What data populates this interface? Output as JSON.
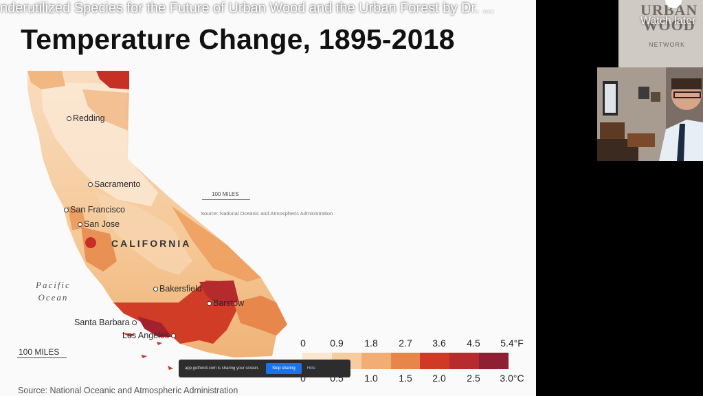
{
  "video": {
    "title": "nderutilized Species for the Future of Urban Wood and the Urban Forest by Dr. ...",
    "watch_later": "Watch later"
  },
  "logo": {
    "line1": "URBAN",
    "line2": "WOOD",
    "line3": "NETWORK"
  },
  "slide": {
    "title": "Temperature Change, 1895-2018",
    "state_label": "CALIFORNIA",
    "ocean_line1": "Pacific",
    "ocean_line2": "Ocean",
    "cities": {
      "redding": "Redding",
      "sacramento": "Sacramento",
      "san_francisco": "San Francisco",
      "san_jose": "San Jose",
      "bakersfield": "Bakersfield",
      "barstow": "Barstow",
      "santa_barbara": "Santa Barbara",
      "los_angeles": "Los Angeles"
    },
    "scale_small": "100 MILES",
    "source_small": "Source: National Oceanic and Atmospheric Administration",
    "scale_big": "100 MILES",
    "source_big": "Source: National Oceanic and Atmospheric Administration"
  },
  "legend": {
    "fahrenheit": [
      "0",
      "0.9",
      "1.8",
      "2.7",
      "3.6",
      "4.5",
      "5.4°F"
    ],
    "celsius": [
      "0",
      "0.5",
      "1.0",
      "1.5",
      "2.0",
      "2.5",
      "3.0°C"
    ],
    "colors": [
      "#fbe6cf",
      "#f7cc9f",
      "#f2ae72",
      "#e8864a",
      "#cf3a25",
      "#b52b2e",
      "#8f1f33"
    ]
  },
  "share_bar": {
    "message": "app.getfondi.com is sharing your screen.",
    "stop_label": "Stop sharing",
    "hide_label": "Hide"
  }
}
